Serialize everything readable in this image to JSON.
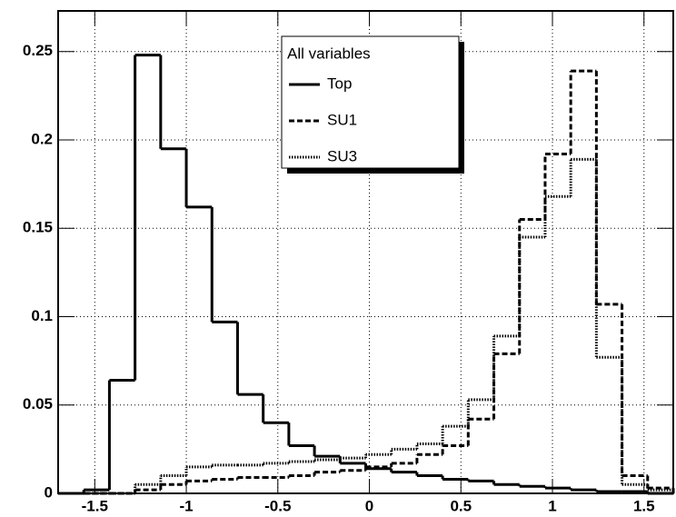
{
  "chart_data": {
    "type": "histogram",
    "bins": [
      -1.7,
      -1.56,
      -1.42,
      -1.28,
      -1.14,
      -1.0,
      -0.86,
      -0.72,
      -0.58,
      -0.44,
      -0.3,
      -0.16,
      -0.02,
      0.12,
      0.26,
      0.4,
      0.54,
      0.68,
      0.82,
      0.96,
      1.1,
      1.24,
      1.38,
      1.52,
      1.66
    ],
    "series": [
      {
        "name": "Top",
        "color": "#000000",
        "dash": "solid",
        "values": [
          0,
          0.002,
          0.064,
          0.248,
          0.195,
          0.162,
          0.097,
          0.056,
          0.04,
          0.027,
          0.021,
          0.017,
          0.014,
          0.012,
          0.01,
          0.008,
          0.007,
          0.005,
          0.004,
          0.003,
          0.002,
          0.001,
          0.001,
          0
        ]
      },
      {
        "name": "SU1",
        "color": "#000000",
        "dash": "dashed",
        "values": [
          0,
          0,
          0,
          0.002,
          0.005,
          0.007,
          0.008,
          0.009,
          0.009,
          0.01,
          0.012,
          0.013,
          0.015,
          0.017,
          0.022,
          0.027,
          0.042,
          0.079,
          0.155,
          0.192,
          0.239,
          0.107,
          0.01,
          0.003
        ]
      },
      {
        "name": "SU3",
        "color": "#000000",
        "dash": "dotted",
        "values": [
          0,
          0,
          0,
          0.005,
          0.01,
          0.015,
          0.016,
          0.016,
          0.017,
          0.018,
          0.019,
          0.02,
          0.022,
          0.025,
          0.028,
          0.038,
          0.053,
          0.089,
          0.145,
          0.168,
          0.189,
          0.077,
          0.005,
          0.002
        ]
      }
    ],
    "legend_title": "All variables",
    "xlim": [
      -1.7,
      1.66
    ],
    "ylim": [
      0,
      0.273
    ],
    "xticks": [
      -1.5,
      -1,
      -0.5,
      0,
      0.5,
      1,
      1.5
    ],
    "yticks": [
      0,
      0.05,
      0.1,
      0.15,
      0.2,
      0.25
    ],
    "grid": true
  }
}
